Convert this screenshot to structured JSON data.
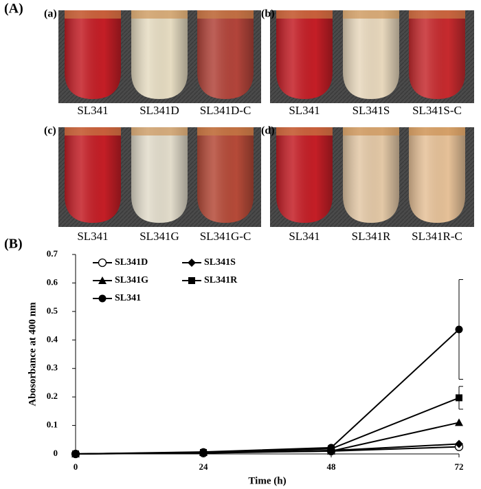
{
  "figure_a": {
    "label": "(A)",
    "panels": [
      {
        "label": "(a)",
        "captions": [
          "SL341",
          "SL341D",
          "SL341D-C"
        ]
      },
      {
        "label": "(b)",
        "captions": [
          "SL341",
          "SL341S",
          "SL341S-C"
        ]
      },
      {
        "label": "(c)",
        "captions": [
          "SL341",
          "SL341G",
          "SL341G-C"
        ]
      },
      {
        "label": "(d)",
        "captions": [
          "SL341",
          "SL341R",
          "SL341R-C"
        ]
      }
    ]
  },
  "figure_b_label": "(B)",
  "chart_data": {
    "type": "line",
    "x_label": "Time (h)",
    "y_label": "Abosorbance at 400 nm",
    "x": [
      0,
      24,
      48,
      72
    ],
    "xlim": [
      0,
      72
    ],
    "xticks": [
      0,
      24,
      48,
      72
    ],
    "ylim": [
      0,
      0.7
    ],
    "yticks": [
      0,
      0.1,
      0.2,
      0.3,
      0.4,
      0.5,
      0.6,
      0.7
    ],
    "grid": false,
    "series": [
      {
        "name": "SL341D",
        "color": "#000000",
        "marker": "open-circle",
        "values": [
          0,
          0.003,
          0.01,
          0.025
        ]
      },
      {
        "name": "SL341S",
        "color": "#000000",
        "marker": "diamond",
        "values": [
          0,
          0.004,
          0.012,
          0.035
        ]
      },
      {
        "name": "SL341G",
        "color": "#000000",
        "marker": "triangle",
        "values": [
          0,
          0.005,
          0.01,
          0.11
        ]
      },
      {
        "name": "SL341R",
        "color": "#000000",
        "marker": "square",
        "values": [
          0,
          0.005,
          0.018,
          0.197
        ],
        "errors": [
          null,
          null,
          null,
          0.04
        ]
      },
      {
        "name": "SL341",
        "color": "#000000",
        "marker": "circle",
        "values": [
          0,
          0.007,
          0.022,
          0.437
        ],
        "errors": [
          null,
          null,
          null,
          0.175
        ]
      }
    ]
  }
}
